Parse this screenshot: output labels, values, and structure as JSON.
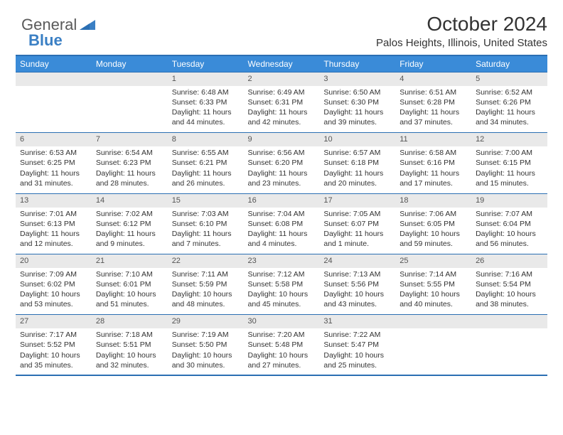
{
  "logo": {
    "word1": "General",
    "word2": "Blue",
    "accent": "#3a7fc4",
    "text_color": "#5a5a5a"
  },
  "header": {
    "title": "October 2024",
    "location": "Palos Heights, Illinois, United States"
  },
  "style": {
    "header_bg": "#3a8bd8",
    "header_text": "#ffffff",
    "border_color": "#2b6fb3",
    "daynum_bg": "#e9e9e9",
    "body_text": "#333333",
    "font_family": "Arial",
    "cell_fontsize": 10.5,
    "header_fontsize": 12,
    "title_fontsize": 28,
    "location_fontsize": 15
  },
  "days_of_week": [
    "Sunday",
    "Monday",
    "Tuesday",
    "Wednesday",
    "Thursday",
    "Friday",
    "Saturday"
  ],
  "weeks": [
    [
      null,
      null,
      {
        "n": "1",
        "sunrise": "6:48 AM",
        "sunset": "6:33 PM",
        "day": "11 hours and 44 minutes."
      },
      {
        "n": "2",
        "sunrise": "6:49 AM",
        "sunset": "6:31 PM",
        "day": "11 hours and 42 minutes."
      },
      {
        "n": "3",
        "sunrise": "6:50 AM",
        "sunset": "6:30 PM",
        "day": "11 hours and 39 minutes."
      },
      {
        "n": "4",
        "sunrise": "6:51 AM",
        "sunset": "6:28 PM",
        "day": "11 hours and 37 minutes."
      },
      {
        "n": "5",
        "sunrise": "6:52 AM",
        "sunset": "6:26 PM",
        "day": "11 hours and 34 minutes."
      }
    ],
    [
      {
        "n": "6",
        "sunrise": "6:53 AM",
        "sunset": "6:25 PM",
        "day": "11 hours and 31 minutes."
      },
      {
        "n": "7",
        "sunrise": "6:54 AM",
        "sunset": "6:23 PM",
        "day": "11 hours and 28 minutes."
      },
      {
        "n": "8",
        "sunrise": "6:55 AM",
        "sunset": "6:21 PM",
        "day": "11 hours and 26 minutes."
      },
      {
        "n": "9",
        "sunrise": "6:56 AM",
        "sunset": "6:20 PM",
        "day": "11 hours and 23 minutes."
      },
      {
        "n": "10",
        "sunrise": "6:57 AM",
        "sunset": "6:18 PM",
        "day": "11 hours and 20 minutes."
      },
      {
        "n": "11",
        "sunrise": "6:58 AM",
        "sunset": "6:16 PM",
        "day": "11 hours and 17 minutes."
      },
      {
        "n": "12",
        "sunrise": "7:00 AM",
        "sunset": "6:15 PM",
        "day": "11 hours and 15 minutes."
      }
    ],
    [
      {
        "n": "13",
        "sunrise": "7:01 AM",
        "sunset": "6:13 PM",
        "day": "11 hours and 12 minutes."
      },
      {
        "n": "14",
        "sunrise": "7:02 AM",
        "sunset": "6:12 PM",
        "day": "11 hours and 9 minutes."
      },
      {
        "n": "15",
        "sunrise": "7:03 AM",
        "sunset": "6:10 PM",
        "day": "11 hours and 7 minutes."
      },
      {
        "n": "16",
        "sunrise": "7:04 AM",
        "sunset": "6:08 PM",
        "day": "11 hours and 4 minutes."
      },
      {
        "n": "17",
        "sunrise": "7:05 AM",
        "sunset": "6:07 PM",
        "day": "11 hours and 1 minute."
      },
      {
        "n": "18",
        "sunrise": "7:06 AM",
        "sunset": "6:05 PM",
        "day": "10 hours and 59 minutes."
      },
      {
        "n": "19",
        "sunrise": "7:07 AM",
        "sunset": "6:04 PM",
        "day": "10 hours and 56 minutes."
      }
    ],
    [
      {
        "n": "20",
        "sunrise": "7:09 AM",
        "sunset": "6:02 PM",
        "day": "10 hours and 53 minutes."
      },
      {
        "n": "21",
        "sunrise": "7:10 AM",
        "sunset": "6:01 PM",
        "day": "10 hours and 51 minutes."
      },
      {
        "n": "22",
        "sunrise": "7:11 AM",
        "sunset": "5:59 PM",
        "day": "10 hours and 48 minutes."
      },
      {
        "n": "23",
        "sunrise": "7:12 AM",
        "sunset": "5:58 PM",
        "day": "10 hours and 45 minutes."
      },
      {
        "n": "24",
        "sunrise": "7:13 AM",
        "sunset": "5:56 PM",
        "day": "10 hours and 43 minutes."
      },
      {
        "n": "25",
        "sunrise": "7:14 AM",
        "sunset": "5:55 PM",
        "day": "10 hours and 40 minutes."
      },
      {
        "n": "26",
        "sunrise": "7:16 AM",
        "sunset": "5:54 PM",
        "day": "10 hours and 38 minutes."
      }
    ],
    [
      {
        "n": "27",
        "sunrise": "7:17 AM",
        "sunset": "5:52 PM",
        "day": "10 hours and 35 minutes."
      },
      {
        "n": "28",
        "sunrise": "7:18 AM",
        "sunset": "5:51 PM",
        "day": "10 hours and 32 minutes."
      },
      {
        "n": "29",
        "sunrise": "7:19 AM",
        "sunset": "5:50 PM",
        "day": "10 hours and 30 minutes."
      },
      {
        "n": "30",
        "sunrise": "7:20 AM",
        "sunset": "5:48 PM",
        "day": "10 hours and 27 minutes."
      },
      {
        "n": "31",
        "sunrise": "7:22 AM",
        "sunset": "5:47 PM",
        "day": "10 hours and 25 minutes."
      },
      null,
      null
    ]
  ]
}
